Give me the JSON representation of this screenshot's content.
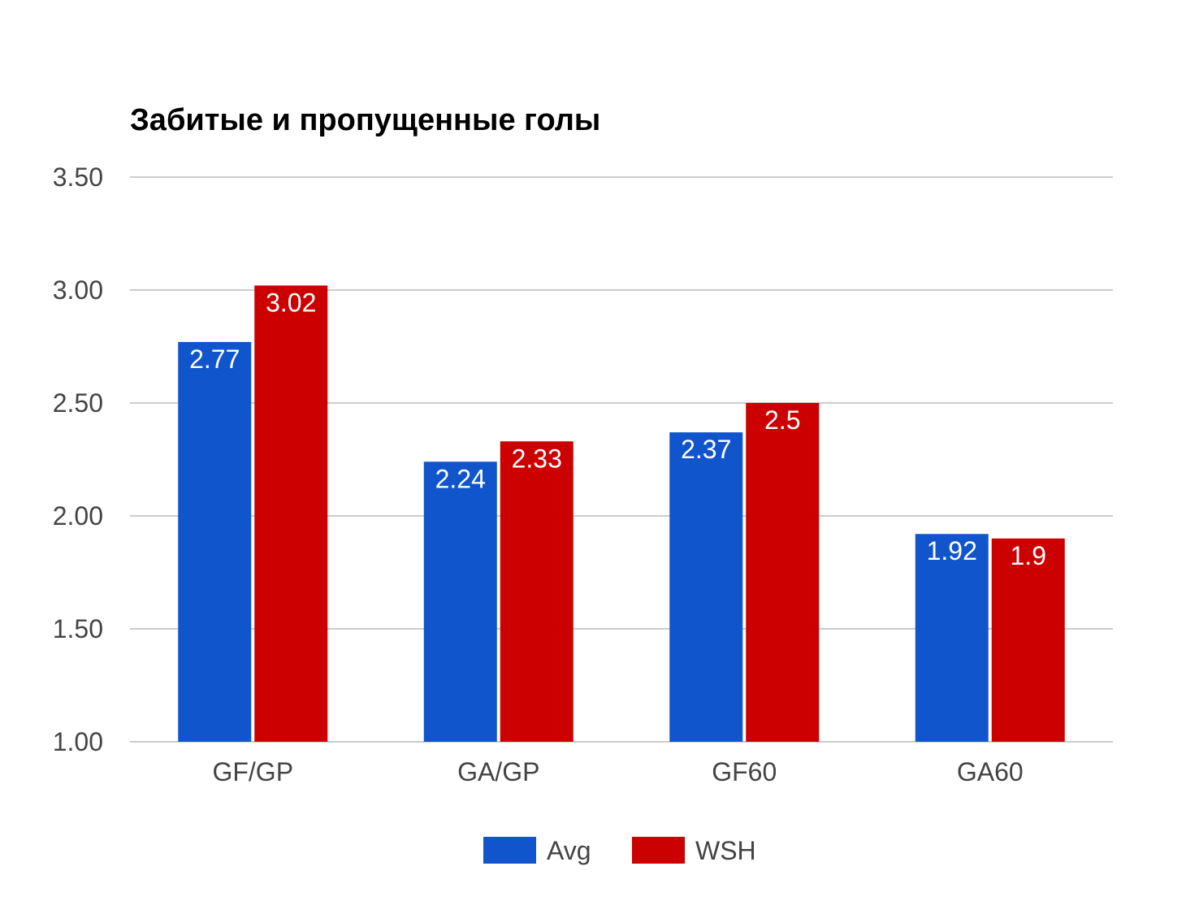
{
  "chart_data": {
    "type": "bar",
    "title": "Забитые и пропущенные голы",
    "xlabel": "",
    "ylabel": "",
    "categories": [
      "GF/GP",
      "GA/GP",
      "GF60",
      "GA60"
    ],
    "series": [
      {
        "name": "Avg",
        "color": "#1155cc",
        "values": [
          2.77,
          2.24,
          2.37,
          1.92
        ]
      },
      {
        "name": "WSH",
        "color": "#cc0000",
        "values": [
          3.02,
          2.33,
          2.5,
          1.9
        ]
      }
    ],
    "data_labels": [
      [
        "2.77",
        "2.24",
        "2.37",
        "1.92"
      ],
      [
        "3.02",
        "2.33",
        "2.5",
        "1.9"
      ]
    ],
    "ylim": [
      1.0,
      3.5
    ],
    "y_ticks": [
      "1.00",
      "1.50",
      "2.00",
      "2.50",
      "3.00",
      "3.50"
    ],
    "grid": true,
    "legend_position": "bottom"
  }
}
